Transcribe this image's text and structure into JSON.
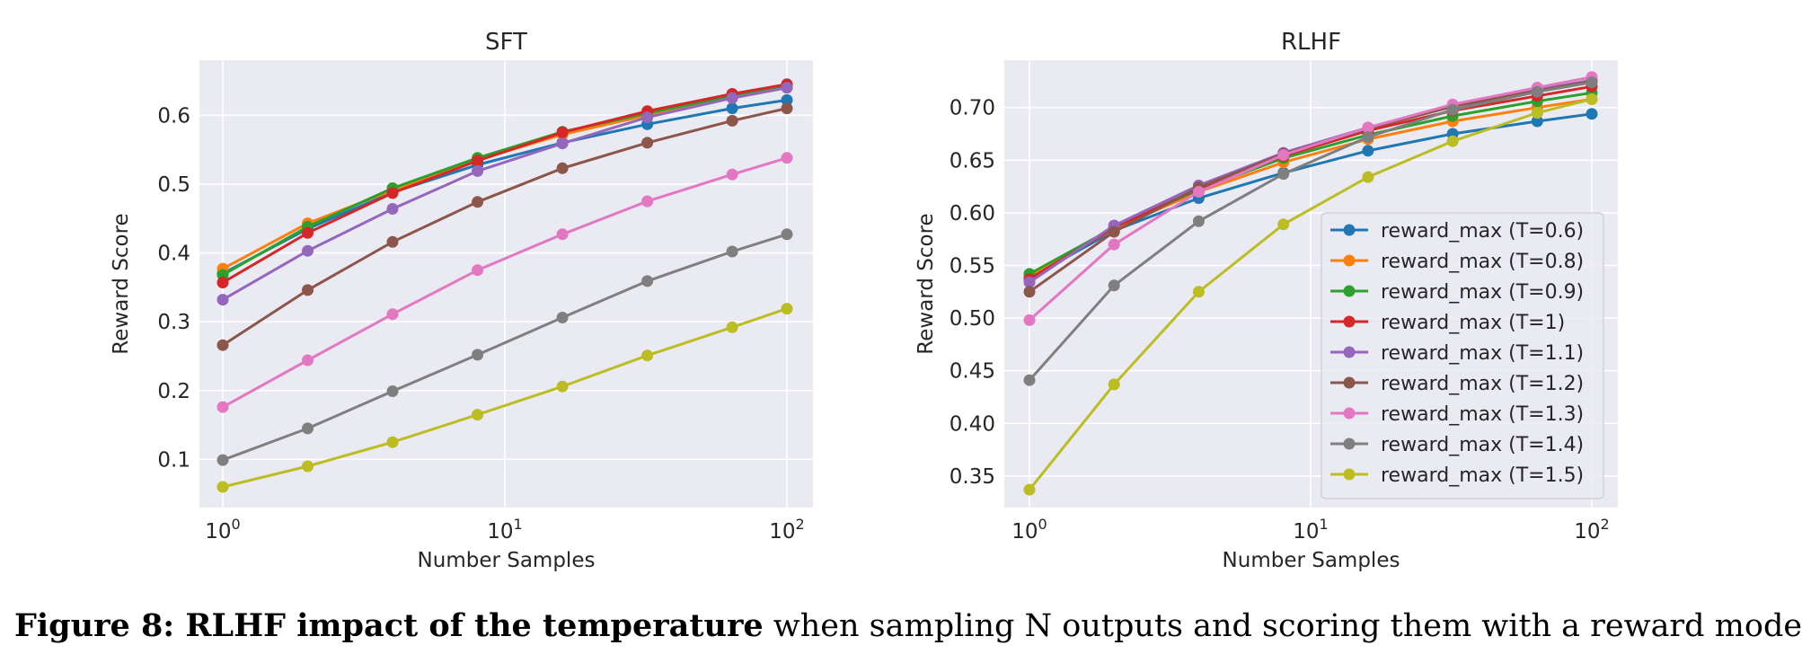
{
  "caption": {
    "bold": "Figure 8: RLHF impact of the temperature",
    "rest": " when sampling N outputs and scoring them with a reward model."
  },
  "chart_data": [
    {
      "type": "line",
      "title": "SFT",
      "xlabel": "Number Samples",
      "ylabel": "Reward Score",
      "xscale": "log",
      "xticks": [
        "10^0",
        "10^1",
        "10^2"
      ],
      "ylim": [
        0.03,
        0.68
      ],
      "yticks": [
        "0.1",
        "0.2",
        "0.3",
        "0.4",
        "0.5",
        "0.6"
      ],
      "grid": true,
      "x": [
        1,
        2,
        4,
        8,
        16,
        32,
        64,
        100
      ],
      "series": [
        {
          "name": "reward_max (T=0.6)",
          "color": "#1f77b4",
          "values": [
            0.37,
            0.435,
            0.488,
            0.528,
            0.56,
            0.587,
            0.61,
            0.622
          ]
        },
        {
          "name": "reward_max (T=0.8)",
          "color": "#ff7f0e",
          "values": [
            0.377,
            0.443,
            0.491,
            0.535,
            0.572,
            0.6,
            0.625,
            0.64
          ]
        },
        {
          "name": "reward_max (T=0.9)",
          "color": "#2ca02c",
          "values": [
            0.368,
            0.438,
            0.494,
            0.538,
            0.576,
            0.603,
            0.628,
            0.643
          ]
        },
        {
          "name": "reward_max (T=1)",
          "color": "#d62728",
          "values": [
            0.357,
            0.429,
            0.487,
            0.534,
            0.575,
            0.606,
            0.631,
            0.645
          ]
        },
        {
          "name": "reward_max (T=1.1)",
          "color": "#9467bd",
          "values": [
            0.332,
            0.403,
            0.464,
            0.519,
            0.559,
            0.597,
            0.625,
            0.64
          ]
        },
        {
          "name": "reward_max (T=1.2)",
          "color": "#8c564b",
          "values": [
            0.266,
            0.346,
            0.416,
            0.474,
            0.523,
            0.56,
            0.592,
            0.61
          ]
        },
        {
          "name": "reward_max (T=1.3)",
          "color": "#e377c2",
          "values": [
            0.176,
            0.244,
            0.311,
            0.375,
            0.427,
            0.475,
            0.514,
            0.538
          ]
        },
        {
          "name": "reward_max (T=1.4)",
          "color": "#7f7f7f",
          "values": [
            0.099,
            0.145,
            0.199,
            0.252,
            0.306,
            0.359,
            0.402,
            0.427
          ]
        },
        {
          "name": "reward_max (T=1.5)",
          "color": "#bcbd22",
          "values": [
            0.06,
            0.09,
            0.125,
            0.165,
            0.206,
            0.251,
            0.292,
            0.319
          ]
        }
      ]
    },
    {
      "type": "line",
      "title": "RLHF",
      "xlabel": "Number Samples",
      "ylabel": "Reward Score",
      "xscale": "log",
      "xticks": [
        "10^0",
        "10^1",
        "10^2"
      ],
      "ylim": [
        0.32,
        0.745
      ],
      "yticks": [
        "0.35",
        "0.40",
        "0.45",
        "0.50",
        "0.55",
        "0.60",
        "0.65",
        "0.70"
      ],
      "grid": true,
      "legend": "lower-right",
      "x": [
        1,
        2,
        4,
        8,
        16,
        32,
        64,
        100
      ],
      "series": [
        {
          "name": "reward_max (T=0.6)",
          "color": "#1f77b4",
          "values": [
            0.538,
            0.583,
            0.614,
            0.638,
            0.659,
            0.675,
            0.687,
            0.694
          ]
        },
        {
          "name": "reward_max (T=0.8)",
          "color": "#ff7f0e",
          "values": [
            0.54,
            0.585,
            0.62,
            0.648,
            0.67,
            0.687,
            0.7,
            0.708
          ]
        },
        {
          "name": "reward_max (T=0.9)",
          "color": "#2ca02c",
          "values": [
            0.542,
            0.586,
            0.622,
            0.652,
            0.674,
            0.692,
            0.706,
            0.714
          ]
        },
        {
          "name": "reward_max (T=1)",
          "color": "#d62728",
          "values": [
            0.537,
            0.586,
            0.623,
            0.654,
            0.678,
            0.697,
            0.711,
            0.72
          ]
        },
        {
          "name": "reward_max (T=1.1)",
          "color": "#9467bd",
          "values": [
            0.534,
            0.588,
            0.626,
            0.657,
            0.681,
            0.702,
            0.717,
            0.726
          ]
        },
        {
          "name": "reward_max (T=1.2)",
          "color": "#8c564b",
          "values": [
            0.525,
            0.582,
            0.624,
            0.656,
            0.68,
            0.701,
            0.716,
            0.725
          ]
        },
        {
          "name": "reward_max (T=1.3)",
          "color": "#e377c2",
          "values": [
            0.498,
            0.57,
            0.62,
            0.655,
            0.681,
            0.703,
            0.719,
            0.729
          ]
        },
        {
          "name": "reward_max (T=1.4)",
          "color": "#7f7f7f",
          "values": [
            0.441,
            0.531,
            0.592,
            0.637,
            0.672,
            0.698,
            0.715,
            0.724
          ]
        },
        {
          "name": "reward_max (T=1.5)",
          "color": "#bcbd22",
          "values": [
            0.337,
            0.437,
            0.525,
            0.589,
            0.634,
            0.668,
            0.695,
            0.708
          ]
        }
      ]
    }
  ]
}
